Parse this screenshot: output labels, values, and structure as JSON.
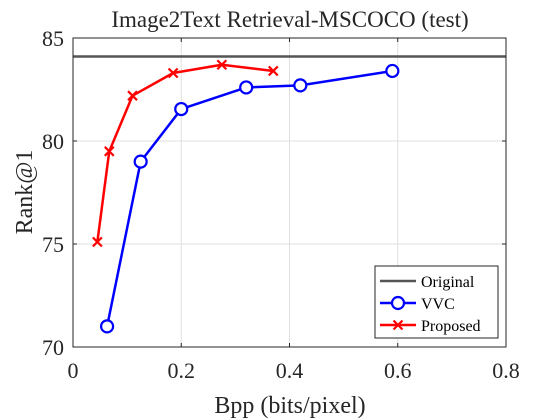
{
  "chart_data": {
    "type": "line",
    "title": "Image2Text Retrieval-MSCOCO (test)",
    "xlabel": "Bpp (bits/pixel)",
    "ylabel": "Rank@1",
    "xlim": [
      0,
      0.8
    ],
    "ylim": [
      70,
      85
    ],
    "xticks": [
      "0",
      "0.2",
      "0.4",
      "0.6",
      "0.8"
    ],
    "yticks": [
      "70",
      "75",
      "80",
      "85"
    ],
    "grid": true,
    "legend_position": "bottom-right",
    "reference_line": {
      "name": "Original",
      "y": 84.1,
      "color": "#555555"
    },
    "series": [
      {
        "name": "VVC",
        "color": "#0000ff",
        "marker": "circle",
        "x": [
          0.063,
          0.125,
          0.2,
          0.32,
          0.42,
          0.59
        ],
        "y": [
          71.0,
          79.0,
          81.55,
          82.6,
          82.7,
          83.4
        ]
      },
      {
        "name": "Proposed",
        "color": "#ff0000",
        "marker": "x",
        "x": [
          0.045,
          0.067,
          0.11,
          0.185,
          0.275,
          0.37
        ],
        "y": [
          75.1,
          79.5,
          82.2,
          83.3,
          83.7,
          83.4
        ]
      }
    ]
  }
}
